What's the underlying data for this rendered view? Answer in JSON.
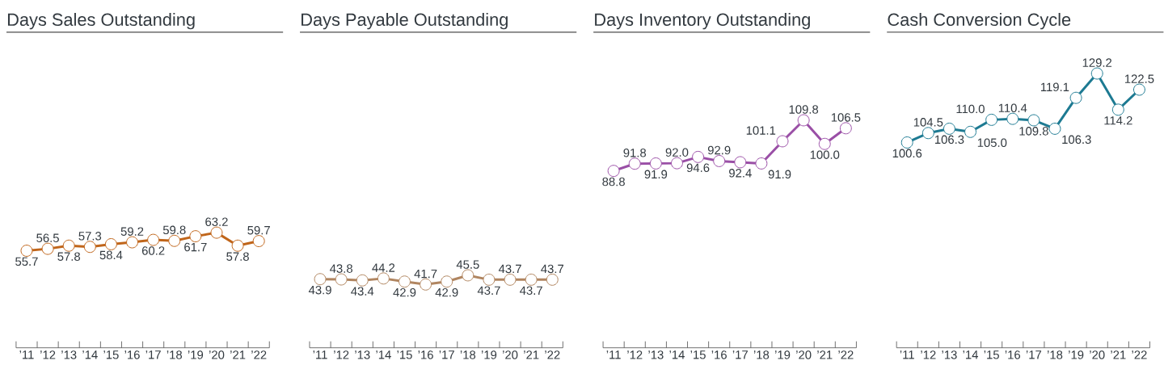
{
  "chart_data": [
    {
      "type": "line",
      "title": "Days Sales Outstanding",
      "categories": [
        "’11",
        "’12",
        "’13",
        "’14",
        "’15",
        "’16",
        "’17",
        "’18",
        "’19",
        "’20",
        "’21",
        "’22"
      ],
      "values": [
        55.7,
        56.5,
        57.8,
        57.3,
        58.4,
        59.2,
        60.2,
        59.8,
        61.7,
        63.2,
        57.8,
        59.7
      ],
      "value_labels": [
        "55.7",
        "56.5",
        "57.8",
        "57.3",
        "58.4",
        "59.2",
        "60.2",
        "59.8",
        "61.7",
        "63.2",
        "57.8",
        "59.7"
      ],
      "color": "#c0651a",
      "marker": "circle",
      "tick_labels": "x"
    },
    {
      "type": "line",
      "title": "Days Payable Outstanding",
      "categories": [
        "’11",
        "’12",
        "’13",
        "’14",
        "’15",
        "’16",
        "’17",
        "’18",
        "’19",
        "’20",
        "’21",
        "’22"
      ],
      "values": [
        43.9,
        43.8,
        43.4,
        44.2,
        42.9,
        41.7,
        42.9,
        45.5,
        43.7,
        43.7,
        43.7,
        43.7
      ],
      "value_labels": [
        "43.9",
        "43.8",
        "43.4",
        "44.2",
        "42.9",
        "41.7",
        "42.9",
        "45.5",
        "43.7",
        "43.7",
        "43.7",
        "43.7"
      ],
      "color": "#b08560",
      "marker": "circle",
      "tick_labels": "x"
    },
    {
      "type": "line",
      "title": "Days Inventory Outstanding",
      "categories": [
        "’11",
        "’12",
        "’13",
        "’14",
        "’15",
        "’16",
        "’17",
        "’18",
        "’19",
        "’20",
        "’21",
        "’22"
      ],
      "values": [
        88.8,
        91.8,
        91.9,
        92.0,
        94.6,
        92.9,
        92.4,
        91.9,
        101.1,
        109.8,
        100.0,
        106.5
      ],
      "value_labels": [
        "88.8",
        "91.8",
        "91.9",
        "92.0",
        "94.6",
        "92.9",
        "92.4",
        "91.9",
        "101.1",
        "109.8",
        "100.0",
        "106.5"
      ],
      "color": "#9a4fa6",
      "marker": "circle",
      "tick_labels": "x"
    },
    {
      "type": "line",
      "title": "Cash Conversion Cycle",
      "categories": [
        "’11",
        "’12",
        "’13",
        "’14",
        "’15",
        "’16",
        "’17",
        "’18",
        "’19",
        "’20",
        "’21",
        "’22"
      ],
      "values": [
        100.6,
        104.5,
        106.3,
        105.0,
        110.0,
        110.4,
        109.8,
        106.3,
        119.1,
        129.2,
        114.2,
        122.5
      ],
      "value_labels": [
        "100.6",
        "104.5",
        "106.3",
        "105.0",
        "110.0",
        "110.4",
        "109.8",
        "106.3",
        "119.1",
        "129.2",
        "114.2",
        "122.5"
      ],
      "color": "#1d7a92",
      "marker": "circle",
      "tick_labels": "x"
    }
  ]
}
